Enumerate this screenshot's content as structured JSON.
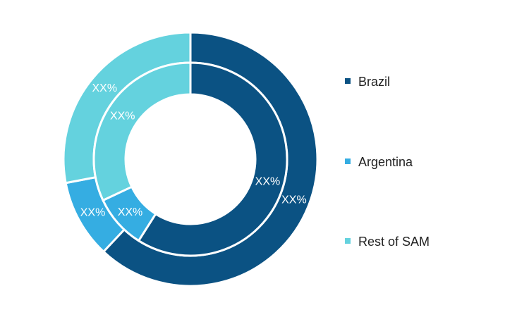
{
  "chart_data": {
    "type": "pie",
    "variant": "double-donut",
    "categories": [
      "Brazil",
      "Argentina",
      "Rest of SAM"
    ],
    "colors": [
      "#0b5283",
      "#35ade2",
      "#64d2de"
    ],
    "series": [
      {
        "ring": "outer",
        "values": [
          62,
          10,
          28
        ],
        "labels": [
          "XX%",
          "XX%",
          "XX%"
        ]
      },
      {
        "ring": "inner",
        "values": [
          59,
          9,
          32
        ],
        "labels": [
          "XX%",
          "XX%",
          "XX%"
        ]
      }
    ],
    "legend": {
      "position": "right",
      "entries": [
        "Brazil",
        "Argentina",
        "Rest of SAM"
      ]
    }
  }
}
